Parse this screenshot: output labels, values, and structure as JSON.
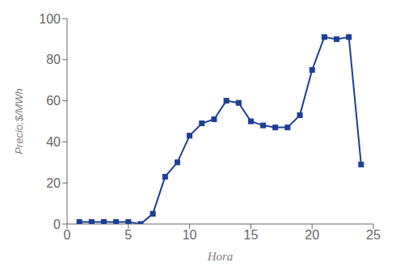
{
  "chart_data": {
    "type": "line",
    "x": [
      1,
      2,
      3,
      4,
      5,
      6,
      7,
      8,
      9,
      10,
      11,
      12,
      13,
      14,
      15,
      16,
      17,
      18,
      19,
      20,
      21,
      22,
      23,
      24
    ],
    "values": [
      1,
      1,
      1,
      1,
      1,
      0,
      5,
      23,
      30,
      43,
      49,
      51,
      60,
      59,
      50,
      48,
      47,
      47,
      53,
      75,
      91,
      90,
      91,
      29
    ],
    "color": "#1c3f94",
    "marker": "square",
    "xlabel": "Hora",
    "ylabel": "Precio,$/MWh",
    "xlim": [
      0,
      25
    ],
    "ylim": [
      0,
      100
    ],
    "xticks": [
      0,
      5,
      10,
      15,
      20,
      25
    ],
    "yticks": [
      0,
      20,
      40,
      60,
      80,
      100
    ],
    "grid": false
  }
}
